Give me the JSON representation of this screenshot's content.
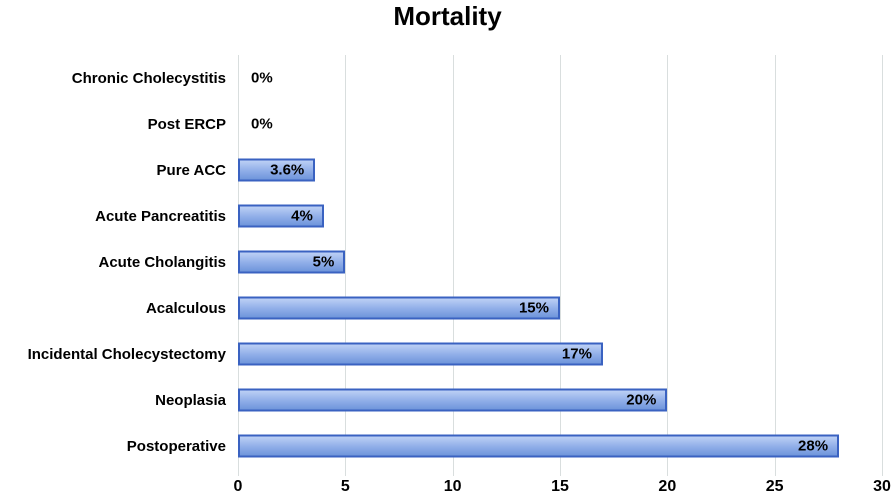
{
  "chart_data": {
    "type": "bar",
    "orientation": "horizontal",
    "title": "Mortality",
    "categories": [
      "Chronic Cholecystitis",
      "Post ERCP",
      "Pure ACC",
      "Acute Pancreatitis",
      "Acute Cholangitis",
      "Acalculous",
      "Incidental Cholecystectomy",
      "Neoplasia",
      "Postoperative"
    ],
    "values": [
      0,
      0,
      3.6,
      4,
      5,
      15,
      17,
      20,
      28
    ],
    "data_labels": [
      "0%",
      "0%",
      "3.6%",
      "4%",
      "5%",
      "15%",
      "17%",
      "20%",
      "28%"
    ],
    "xlabel": "",
    "ylabel": "",
    "xlim": [
      0,
      30
    ],
    "x_tick_labels": [
      "0",
      "5",
      "10",
      "15",
      "20",
      "25",
      "30"
    ],
    "grid": "vertical gridlines at each x tick",
    "legend": "none",
    "colors": {
      "bar_fill_top": "#bdd0f5",
      "bar_fill_mid": "#8fade8",
      "bar_fill_bottom": "#6f95db",
      "bar_border": "#3a62c1",
      "gridline": "#d9dede",
      "text": "#000000",
      "background": "#ffffff"
    }
  }
}
